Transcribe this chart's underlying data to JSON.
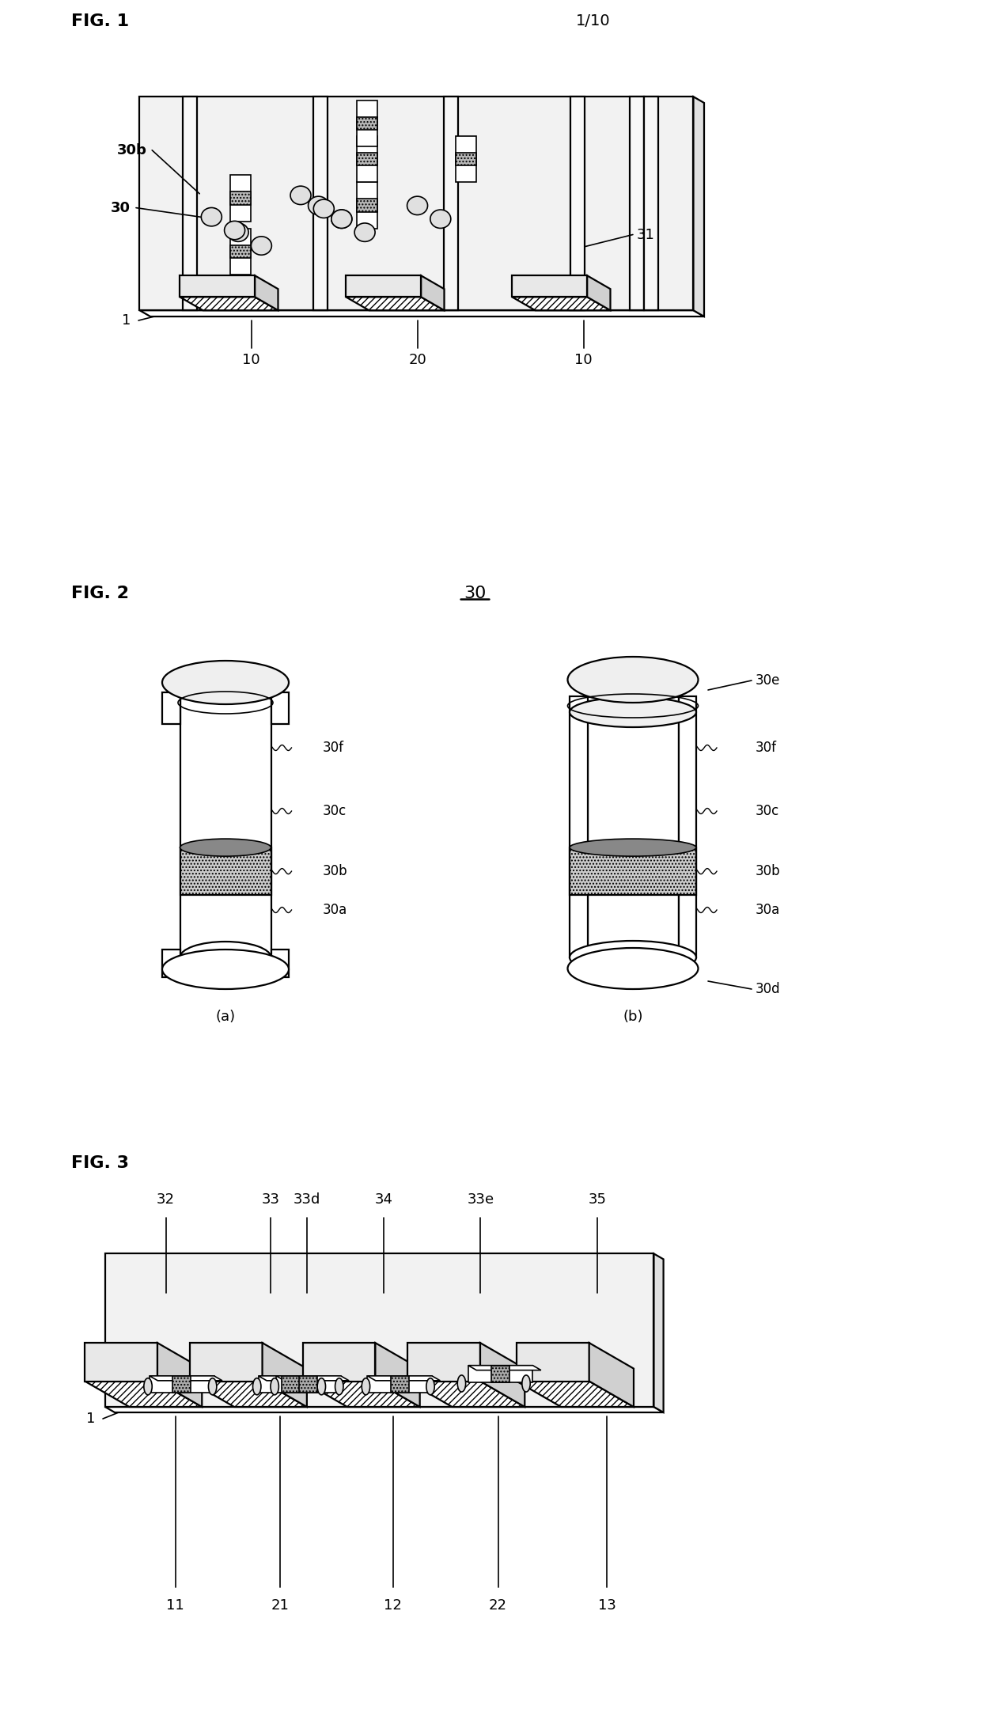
{
  "bg_color": "#ffffff",
  "lc": "#000000",
  "fig1_label": "FIG. 1",
  "fig2_label": "FIG. 2",
  "fig3_label": "FIG. 3",
  "page_label": "1/10",
  "fig2_title": "30",
  "lbl_30": "30",
  "lbl_30b": "30b",
  "lbl_31": "31",
  "lbl_1_f1": "1",
  "lbl_10a": "10",
  "lbl_20": "20",
  "lbl_10b": "10",
  "lbl_a": "(a)",
  "lbl_b": "(b)",
  "lbl_30e": "30e",
  "lbl_30f_a": "30f",
  "lbl_30c_a": "30c",
  "lbl_30b_a": "30b",
  "lbl_30a_a": "30a",
  "lbl_30f_b": "30f",
  "lbl_30c_b": "30c",
  "lbl_30b_b": "30b",
  "lbl_30a_b": "30a",
  "lbl_30d": "30d",
  "lbl_32": "32",
  "lbl_33": "33",
  "lbl_33d": "33d",
  "lbl_34": "34",
  "lbl_33e": "33e",
  "lbl_35": "35",
  "lbl_1_f3": "1",
  "lbl_11": "11",
  "lbl_21": "21",
  "lbl_12": "12",
  "lbl_22": "22",
  "lbl_13": "13"
}
